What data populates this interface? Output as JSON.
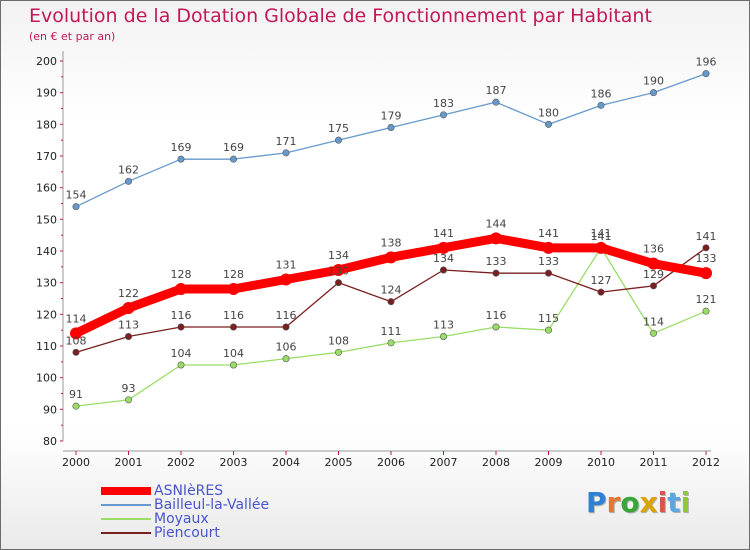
{
  "chart_data": {
    "type": "line",
    "title": "Evolution de la Dotation Globale de Fonctionnement par Habitant",
    "subtitle": "(en € et par an)",
    "xlabel": "",
    "ylabel": "",
    "ylim": [
      80,
      200
    ],
    "yticks": [
      80,
      90,
      100,
      110,
      120,
      130,
      140,
      150,
      160,
      170,
      180,
      190,
      200
    ],
    "x": [
      "2000",
      "2001",
      "2002",
      "2003",
      "2004",
      "2005",
      "2006",
      "2007",
      "2008",
      "2009",
      "2010",
      "2011",
      "2012"
    ],
    "grid": false,
    "legend_position": "bottom-left",
    "series": [
      {
        "name": "ASNIèRES",
        "color": "#ff0000",
        "values": [
          114,
          122,
          128,
          128,
          131,
          134,
          138,
          141,
          144,
          141,
          141,
          136,
          133
        ]
      },
      {
        "name": "Bailleul-la-Vallée",
        "color": "#6699cc",
        "values": [
          154,
          162,
          169,
          169,
          171,
          175,
          179,
          183,
          187,
          180,
          186,
          190,
          196
        ]
      },
      {
        "name": "Moyaux",
        "color": "#99dd66",
        "values": [
          91,
          93,
          104,
          104,
          106,
          108,
          111,
          113,
          116,
          115,
          141,
          114,
          121
        ]
      },
      {
        "name": "Piencourt",
        "color": "#7a1f1f",
        "values": [
          108,
          113,
          116,
          116,
          116,
          130,
          124,
          134,
          133,
          133,
          127,
          129,
          141
        ]
      }
    ]
  },
  "logo": {
    "letters": [
      "P",
      "r",
      "o",
      "x",
      "i",
      "t",
      "i"
    ],
    "colors": [
      "#2e7fd6",
      "#e8762c",
      "#3aa63a",
      "#d9a400",
      "#d9534f",
      "#5aa7e0",
      "#8fc93a"
    ]
  }
}
